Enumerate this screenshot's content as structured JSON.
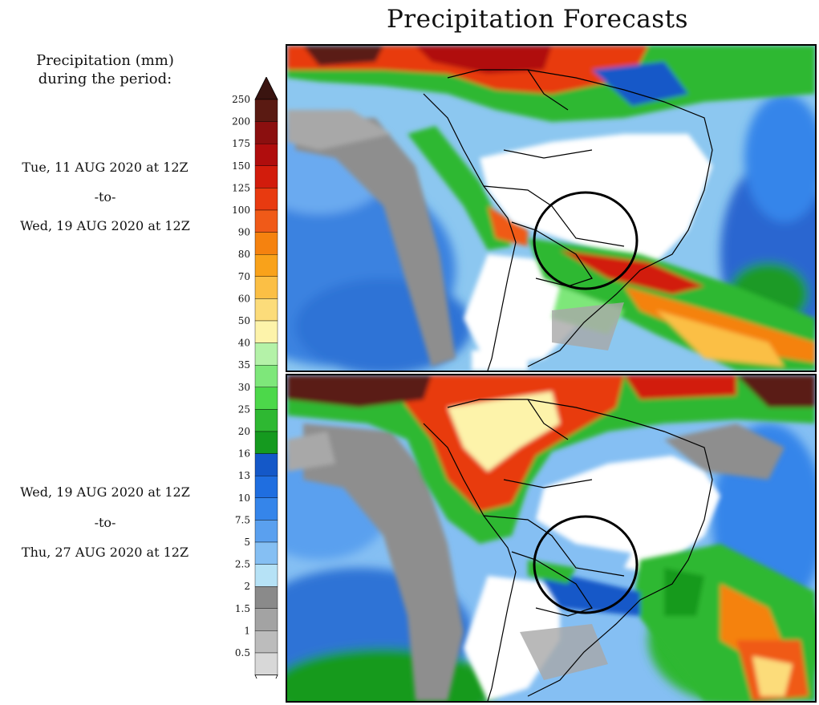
{
  "title": "Precipitation Forecasts",
  "legend": {
    "heading_line1": "Precipitation (mm)",
    "heading_line2": "during the period:",
    "levels": [
      "250",
      "200",
      "175",
      "150",
      "125",
      "100",
      "90",
      "80",
      "70",
      "60",
      "50",
      "40",
      "35",
      "30",
      "25",
      "20",
      "16",
      "13",
      "10",
      "7.5",
      "5",
      "2.5",
      "2",
      "1.5",
      "1",
      "0.5"
    ],
    "colors": [
      "#5a1a12",
      "#8b0f0f",
      "#b00d0d",
      "#d21c0c",
      "#e83a10",
      "#f05a18",
      "#f5820f",
      "#f9a21a",
      "#fbbf45",
      "#fcdc7a",
      "#fdf3aa",
      "#b4f2a8",
      "#7ee77a",
      "#4cd84a",
      "#2eb832",
      "#159a1f",
      "#1458c8",
      "#1f6ee0",
      "#3585ea",
      "#5aa0ef",
      "#85bff3",
      "#b6e2f6",
      "#8a8a8a",
      "#a3a3a3",
      "#bcbcbc",
      "#d8d8d8"
    ],
    "top_arrow_color": "#3a1410",
    "bottom_arrow_color": "#ffffff"
  },
  "periods": [
    {
      "start": "Tue, 11 AUG 2020 at 12Z",
      "sep": "-to-",
      "end": "Wed, 19 AUG 2020 at 12Z"
    },
    {
      "start": "Wed, 19 AUG 2020 at 12Z",
      "sep": "-to-",
      "end": "Thu, 27 AUG 2020 at 12Z"
    }
  ]
}
